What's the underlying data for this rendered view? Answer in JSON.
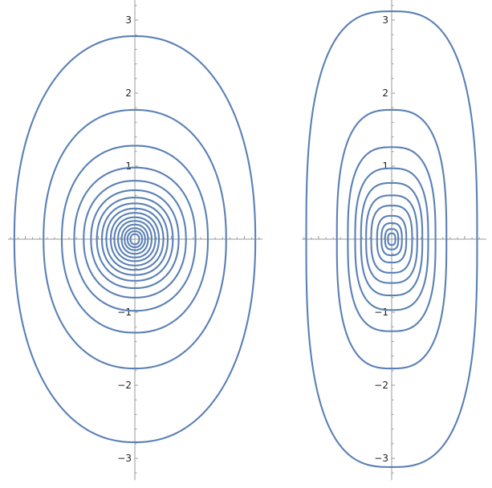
{
  "chart_data": [
    {
      "type": "line",
      "title": "",
      "xlabel": "",
      "ylabel": "",
      "xlim": [
        -1.65,
        1.65
      ],
      "ylim": [
        -3.3,
        3.35
      ],
      "y_tick_labels": [
        {
          "value": 3,
          "label": "3"
        },
        {
          "value": 2,
          "label": "2"
        },
        {
          "value": 1,
          "label": "1"
        },
        {
          "value": -1,
          "label": "−1"
        },
        {
          "value": -2,
          "label": "−2"
        },
        {
          "value": -3,
          "label": "−3"
        }
      ],
      "x_minor_step": 0.1,
      "x_major_step": 0.5,
      "y_minor_step": 0.2,
      "orbit_shape_exponent": 2.2,
      "series_color": "#5a80b5",
      "grid": false,
      "orbits": [
        {
          "x_extent": 1.65,
          "y_extent": 2.78
        },
        {
          "x_extent": 1.25,
          "y_extent": 1.77
        },
        {
          "x_extent": 1.0,
          "y_extent": 1.28
        },
        {
          "x_extent": 0.83,
          "y_extent": 0.98
        },
        {
          "x_extent": 0.7,
          "y_extent": 0.8
        },
        {
          "x_extent": 0.6,
          "y_extent": 0.67
        },
        {
          "x_extent": 0.52,
          "y_extent": 0.57
        },
        {
          "x_extent": 0.45,
          "y_extent": 0.49
        },
        {
          "x_extent": 0.39,
          "y_extent": 0.42
        },
        {
          "x_extent": 0.33,
          "y_extent": 0.36
        },
        {
          "x_extent": 0.28,
          "y_extent": 0.3
        },
        {
          "x_extent": 0.23,
          "y_extent": 0.25
        },
        {
          "x_extent": 0.18,
          "y_extent": 0.2
        },
        {
          "x_extent": 0.14,
          "y_extent": 0.15
        },
        {
          "x_extent": 0.1,
          "y_extent": 0.11
        },
        {
          "x_extent": 0.06,
          "y_extent": 0.07
        }
      ]
    },
    {
      "type": "line",
      "title": "",
      "xlabel": "",
      "ylabel": "",
      "xlim": [
        -1.2,
        1.2
      ],
      "ylim": [
        -3.3,
        3.35
      ],
      "y_tick_labels": [
        {
          "value": 3,
          "label": "3"
        },
        {
          "value": 2,
          "label": "2"
        },
        {
          "value": 1,
          "label": "1"
        },
        {
          "value": -1,
          "label": "−1"
        },
        {
          "value": -2,
          "label": "−2"
        },
        {
          "value": -3,
          "label": "−3"
        }
      ],
      "x_minor_step": 0.1,
      "x_major_step": 0.5,
      "y_minor_step": 0.2,
      "orbit_shape_exponent": 2.8,
      "series_color": "#5a80b5",
      "grid": false,
      "orbits": [
        {
          "x_extent": 1.17,
          "y_extent": 3.12
        },
        {
          "x_extent": 0.75,
          "y_extent": 1.77
        },
        {
          "x_extent": 0.6,
          "y_extent": 1.26
        },
        {
          "x_extent": 0.5,
          "y_extent": 0.97
        },
        {
          "x_extent": 0.42,
          "y_extent": 0.77
        },
        {
          "x_extent": 0.35,
          "y_extent": 0.6
        },
        {
          "x_extent": 0.28,
          "y_extent": 0.46
        },
        {
          "x_extent": 0.2,
          "y_extent": 0.32
        },
        {
          "x_extent": 0.14,
          "y_extent": 0.22
        },
        {
          "x_extent": 0.09,
          "y_extent": 0.14
        },
        {
          "x_extent": 0.05,
          "y_extent": 0.08
        }
      ]
    }
  ]
}
